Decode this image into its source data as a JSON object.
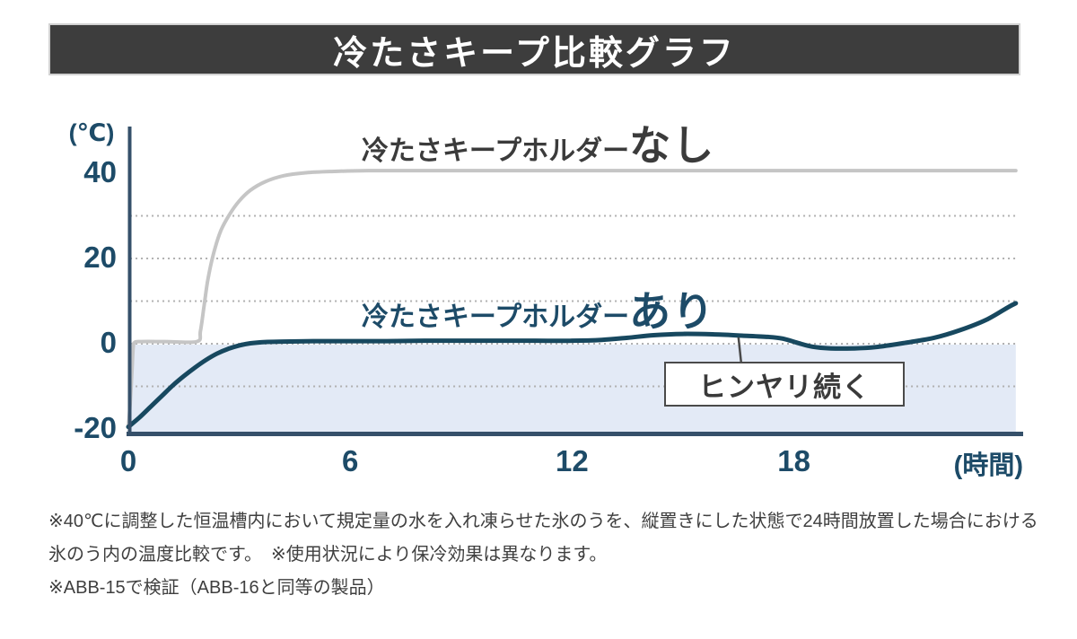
{
  "header": {
    "title": "冷たさキープ比較グラフ"
  },
  "chart_data": {
    "type": "line",
    "title": "冷たさキープ比較グラフ",
    "xlabel": "(時間)",
    "ylabel": "(℃)",
    "xlim": [
      0,
      24
    ],
    "ylim": [
      -20,
      45
    ],
    "grid": "dashed horizontal at 30, 20, 10, 0, -10",
    "legend_position": "labels beside curves",
    "y_ticks": [
      {
        "value": 40,
        "label": "40"
      },
      {
        "value": 20,
        "label": "20"
      },
      {
        "value": 0,
        "label": "0"
      },
      {
        "value": -20,
        "label": "-20"
      }
    ],
    "x_ticks": [
      {
        "value": 0,
        "label": "0"
      },
      {
        "value": 6,
        "label": "6"
      },
      {
        "value": 12,
        "label": "12"
      },
      {
        "value": 18,
        "label": "18"
      }
    ],
    "gridlines_at": [
      30,
      20,
      10,
      0,
      -10
    ],
    "series": [
      {
        "name": "冷たさキープホルダーなし",
        "label_prefix": "冷たさキープホルダー",
        "label_em": "なし",
        "color": "#c5c5c5",
        "points": [
          [
            0,
            -19.5
          ],
          [
            0.05,
            -14
          ],
          [
            0.1,
            -6
          ],
          [
            0.13,
            -1
          ],
          [
            0.17,
            0.3
          ],
          [
            0.35,
            0.5
          ],
          [
            1.0,
            0.5
          ],
          [
            1.85,
            0.5
          ],
          [
            1.95,
            3
          ],
          [
            2.05,
            9
          ],
          [
            2.15,
            15
          ],
          [
            2.3,
            21
          ],
          [
            2.5,
            26.5
          ],
          [
            2.75,
            30.5
          ],
          [
            3.0,
            33.5
          ],
          [
            3.3,
            36
          ],
          [
            3.7,
            38
          ],
          [
            4.2,
            39.4
          ],
          [
            4.8,
            40.1
          ],
          [
            5.5,
            40.4
          ],
          [
            6.5,
            40.6
          ],
          [
            9,
            40.6
          ],
          [
            12,
            40.6
          ],
          [
            16,
            40.6
          ],
          [
            20,
            40.6
          ],
          [
            24,
            40.6
          ]
        ]
      },
      {
        "name": "冷たさキープホルダーあり",
        "label_prefix": "冷たさキープホルダー",
        "label_em": "あり",
        "color": "#17485f",
        "points": [
          [
            0,
            -19.5
          ],
          [
            0.3,
            -17.3
          ],
          [
            0.6,
            -14.8
          ],
          [
            0.9,
            -12.3
          ],
          [
            1.2,
            -9.8
          ],
          [
            1.5,
            -7.6
          ],
          [
            1.8,
            -5.6
          ],
          [
            2.1,
            -3.8
          ],
          [
            2.4,
            -2.3
          ],
          [
            2.7,
            -1.2
          ],
          [
            3.0,
            -0.4
          ],
          [
            3.3,
            0.1
          ],
          [
            3.7,
            0.4
          ],
          [
            4.2,
            0.5
          ],
          [
            5,
            0.6
          ],
          [
            6,
            0.6
          ],
          [
            7,
            0.6
          ],
          [
            8,
            0.7
          ],
          [
            9,
            0.7
          ],
          [
            10,
            0.7
          ],
          [
            11,
            0.7
          ],
          [
            12,
            0.7
          ],
          [
            12.8,
            0.9
          ],
          [
            13.5,
            1.4
          ],
          [
            14.2,
            2.0
          ],
          [
            15,
            2.3
          ],
          [
            15.8,
            2.2
          ],
          [
            16.6,
            1.9
          ],
          [
            17.3,
            1.6
          ],
          [
            17.7,
            1.2
          ],
          [
            18.1,
            0.2
          ],
          [
            18.5,
            -0.7
          ],
          [
            19,
            -1.1
          ],
          [
            19.6,
            -1.1
          ],
          [
            20.2,
            -0.8
          ],
          [
            21,
            0.2
          ],
          [
            21.8,
            1.4
          ],
          [
            22.5,
            3.2
          ],
          [
            23.2,
            5.6
          ],
          [
            23.8,
            8.6
          ],
          [
            24,
            9.5
          ]
        ]
      }
    ],
    "cold_zone": {
      "from_temp": 0,
      "to_temp": -20,
      "fill": "#e3eaf6"
    },
    "annotation": {
      "text": "ヒンヤリ続く",
      "anchor_hour": 16.5,
      "anchor_temp": 1.5
    }
  },
  "footnotes": {
    "line1": "※40℃に調整した恒温槽内において規定量の水を入れ凍らせた氷のうを、縦置きにした状態で24時間放置した場合における",
    "line2": "氷のう内の温度比較です。　※使用状況により保冷効果は異なります。",
    "line3": "※ABB-15で検証（ABB-16と同等の製品）"
  },
  "colors": {
    "header_bg": "#3d3d3d",
    "header_text": "#ffffff",
    "axis": "#35506a",
    "axis_text": "#1d4b68",
    "gridline": "#b0b0b0",
    "series_without": "#c5c5c5",
    "series_with": "#17485f",
    "cold_zone_fill": "#e3eaf6",
    "annotation_border": "#4a4a4a",
    "annotation_text": "#3a3a3a",
    "footnote_text": "#3f3f3f"
  }
}
